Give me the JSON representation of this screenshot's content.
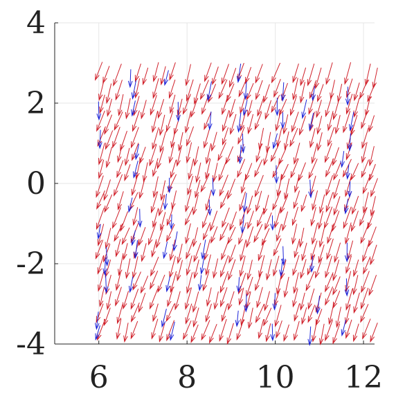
{
  "chart_data": {
    "type": "quiver",
    "title": "",
    "xlabel": "",
    "ylabel": "",
    "xlim": [
      5.0,
      12.25
    ],
    "ylim": [
      -4,
      4
    ],
    "grid": true,
    "x_ticks": [
      6,
      8,
      10,
      12
    ],
    "x_tick_labels": [
      "6",
      "8",
      "10",
      "12"
    ],
    "y_ticks": [
      4,
      2,
      0,
      -2,
      -4
    ],
    "y_tick_labels": [
      "4",
      "2",
      "0",
      "-2",
      "-4"
    ],
    "x_grid": [
      6.0,
      6.4,
      6.8,
      7.2,
      7.6,
      8.0,
      8.4,
      8.8,
      9.2,
      9.6,
      10.0,
      10.4,
      10.8,
      11.2,
      11.6,
      12.0
    ],
    "y_grid": [
      3.0,
      2.6,
      2.2,
      1.8,
      1.4,
      1.0,
      0.6,
      0.2,
      -0.2,
      -0.6,
      -1.0,
      -1.4,
      -1.8,
      -2.2,
      -2.6,
      -3.0,
      -3.4
    ],
    "series": [
      {
        "color": "#d0202a",
        "vector_field": "dense red arrows pointing down and slightly left, roughly 0.45 units long"
      },
      {
        "color": "#1a22d8",
        "vector_field": "sparser blue arrows pointing mostly downward, roughly 0.4 units long"
      }
    ]
  }
}
